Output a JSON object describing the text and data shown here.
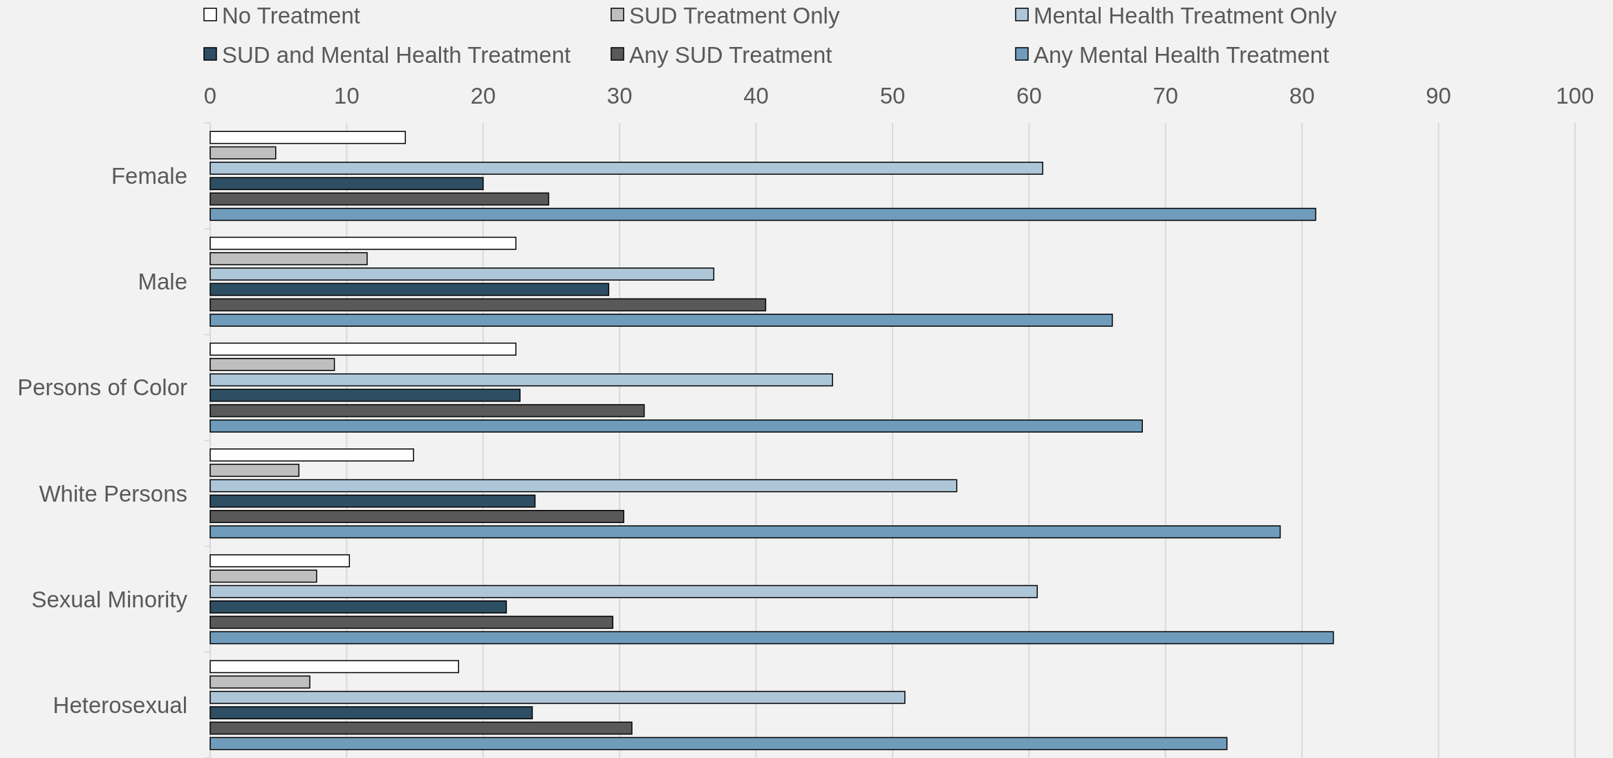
{
  "chart_data": {
    "type": "bar",
    "orientation": "horizontal",
    "categories": [
      "Female",
      "Male",
      "Persons of Color",
      "White Persons",
      "Sexual Minority",
      "Heterosexual"
    ],
    "series": [
      {
        "name": "No Treatment",
        "color": "#ffffff",
        "values": [
          14.3,
          22.4,
          22.4,
          14.9,
          10.2,
          18.2
        ]
      },
      {
        "name": "SUD Treatment Only",
        "color": "#bfbfbf",
        "values": [
          4.8,
          11.5,
          9.1,
          6.5,
          7.8,
          7.3
        ]
      },
      {
        "name": "Mental Health Treatment Only",
        "color": "#adc6d8",
        "values": [
          61.0,
          36.9,
          45.6,
          54.7,
          60.6,
          50.9
        ]
      },
      {
        "name": "SUD and Mental Health Treatment",
        "color": "#2e4e63",
        "values": [
          20.0,
          29.2,
          22.7,
          23.8,
          21.7,
          23.6
        ]
      },
      {
        "name": "Any SUD Treatment",
        "color": "#595959",
        "values": [
          24.8,
          40.7,
          31.8,
          30.3,
          29.5,
          30.9
        ]
      },
      {
        "name": "Any Mental Health Treatment",
        "color": "#6f9cba",
        "values": [
          81.0,
          66.1,
          68.3,
          78.4,
          82.3,
          74.5
        ]
      }
    ],
    "xlim": [
      0,
      100
    ],
    "xticks": [
      0,
      10,
      20,
      30,
      40,
      50,
      60,
      70,
      80,
      90,
      100
    ],
    "grid": "x",
    "legend": "top"
  }
}
